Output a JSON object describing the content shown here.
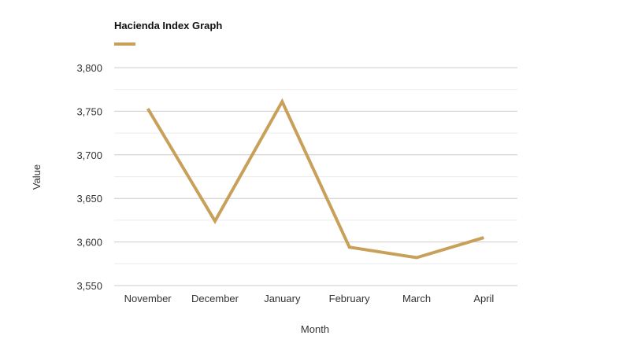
{
  "chart_data": {
    "type": "line",
    "title": "Hacienda Index Graph",
    "xlabel": "Month",
    "ylabel": "Value",
    "categories": [
      "November",
      "December",
      "January",
      "February",
      "March",
      "April"
    ],
    "series": [
      {
        "values": [
          3753,
          3624,
          3761,
          3594,
          3582,
          3605
        ]
      }
    ],
    "ylim": [
      3550,
      3800
    ],
    "yticks": [
      3550,
      3600,
      3650,
      3700,
      3750,
      3800
    ],
    "ytick_labels": [
      "3,550",
      "3,600",
      "3,650",
      "3,700",
      "3,750",
      "3,800"
    ],
    "grid": true,
    "legend": "top-left",
    "colors": {
      "line": "#c8a05a",
      "major_grid": "#cccccc",
      "minor_grid": "#ececec",
      "text": "#333333"
    }
  }
}
